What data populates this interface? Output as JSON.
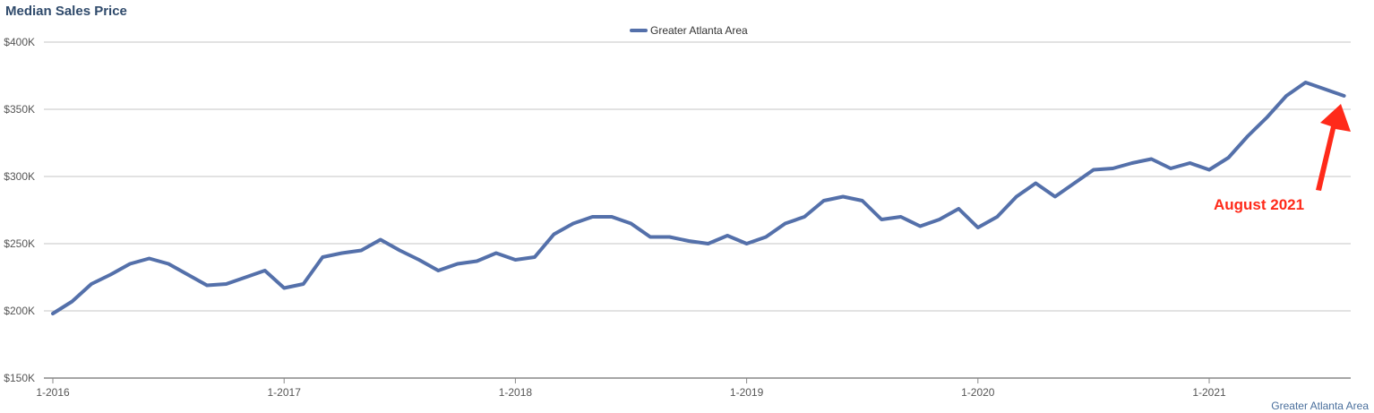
{
  "chart_data": {
    "type": "line",
    "title": "Median Sales Price",
    "xlabel": "",
    "ylabel": "",
    "ylim": [
      150000,
      400000
    ],
    "y_ticks": [
      {
        "value": 150000,
        "label": "$150K"
      },
      {
        "value": 200000,
        "label": "$200K"
      },
      {
        "value": 250000,
        "label": "$250K"
      },
      {
        "value": 300000,
        "label": "$300K"
      },
      {
        "value": 350000,
        "label": "$350K"
      },
      {
        "value": 400000,
        "label": "$400K"
      }
    ],
    "x_ticks": [
      "1-2016",
      "1-2017",
      "1-2018",
      "1-2019",
      "1-2020",
      "1-2021"
    ],
    "x_start": "1-2016",
    "x_end": "8-2021",
    "grid": true,
    "legend": "top-center",
    "series": [
      {
        "name": "Greater Atlanta Area",
        "color": "#5470aa",
        "values": [
          198000,
          207000,
          220000,
          227000,
          235000,
          239000,
          235000,
          227000,
          219000,
          220000,
          225000,
          230000,
          217000,
          220000,
          240000,
          243000,
          245000,
          253000,
          245000,
          238000,
          230000,
          235000,
          237000,
          243000,
          238000,
          240000,
          257000,
          265000,
          270000,
          270000,
          265000,
          255000,
          255000,
          252000,
          250000,
          256000,
          250000,
          255000,
          265000,
          270000,
          282000,
          285000,
          282000,
          268000,
          270000,
          263000,
          268000,
          276000,
          262000,
          270000,
          285000,
          295000,
          285000,
          295000,
          305000,
          306000,
          310000,
          313000,
          306000,
          310000,
          305000,
          314000,
          330000,
          344000,
          360000,
          370000,
          365000,
          360000
        ]
      }
    ],
    "annotation": {
      "text": "August 2021",
      "target": "8-2021",
      "color": "#ff2a1a"
    },
    "source_label": "Greater Atlanta Area"
  }
}
